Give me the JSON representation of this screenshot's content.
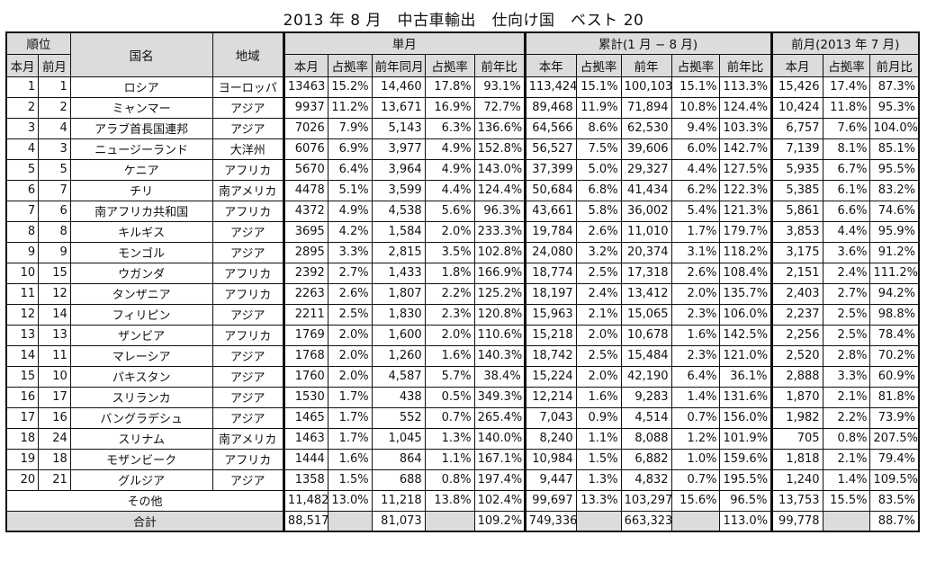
{
  "title": "2013 年 8 月　中古車輸出　仕向け国　ベスト 20",
  "headers": {
    "rank": "順位",
    "rank_this": "本月",
    "rank_prev": "前月",
    "country": "国名",
    "region": "地域",
    "single_month": "単月",
    "cumulative": "累計(1 月 − 8 月)",
    "prev_month_group": "前月(2013 年 7 月)",
    "sm_cols": [
      "本月",
      "占拠率",
      "前年同月",
      "占拠率",
      "前年比"
    ],
    "cu_cols": [
      "本年",
      "占拠率",
      "前年",
      "占拠率",
      "前年比"
    ],
    "pm_cols": [
      "本月",
      "占拠率",
      "前月比"
    ]
  },
  "rows": [
    {
      "rank": "1",
      "prev": "1",
      "country": "ロシア",
      "region": "ヨーロッパ",
      "sm": [
        "13463",
        "15.2%",
        "14,460",
        "17.8%",
        "93.1%"
      ],
      "cu": [
        "113,424",
        "15.1%",
        "100,103",
        "15.1%",
        "113.3%"
      ],
      "pm": [
        "15,426",
        "17.4%",
        "87.3%"
      ]
    },
    {
      "rank": "2",
      "prev": "2",
      "country": "ミャンマー",
      "region": "アジア",
      "sm": [
        "9937",
        "11.2%",
        "13,671",
        "16.9%",
        "72.7%"
      ],
      "cu": [
        "89,468",
        "11.9%",
        "71,894",
        "10.8%",
        "124.4%"
      ],
      "pm": [
        "10,424",
        "11.8%",
        "95.3%"
      ]
    },
    {
      "rank": "3",
      "prev": "4",
      "country": "アラブ首長国連邦",
      "region": "アジア",
      "sm": [
        "7026",
        "7.9%",
        "5,143",
        "6.3%",
        "136.6%"
      ],
      "cu": [
        "64,566",
        "8.6%",
        "62,530",
        "9.4%",
        "103.3%"
      ],
      "pm": [
        "6,757",
        "7.6%",
        "104.0%"
      ]
    },
    {
      "rank": "4",
      "prev": "3",
      "country": "ニュージーランド",
      "region": "大洋州",
      "sm": [
        "6076",
        "6.9%",
        "3,977",
        "4.9%",
        "152.8%"
      ],
      "cu": [
        "56,527",
        "7.5%",
        "39,606",
        "6.0%",
        "142.7%"
      ],
      "pm": [
        "7,139",
        "8.1%",
        "85.1%"
      ]
    },
    {
      "rank": "5",
      "prev": "5",
      "country": "ケニア",
      "region": "アフリカ",
      "sm": [
        "5670",
        "6.4%",
        "3,964",
        "4.9%",
        "143.0%"
      ],
      "cu": [
        "37,399",
        "5.0%",
        "29,327",
        "4.4%",
        "127.5%"
      ],
      "pm": [
        "5,935",
        "6.7%",
        "95.5%"
      ]
    },
    {
      "rank": "6",
      "prev": "7",
      "country": "チリ",
      "region": "南アメリカ",
      "sm": [
        "4478",
        "5.1%",
        "3,599",
        "4.4%",
        "124.4%"
      ],
      "cu": [
        "50,684",
        "6.8%",
        "41,434",
        "6.2%",
        "122.3%"
      ],
      "pm": [
        "5,385",
        "6.1%",
        "83.2%"
      ]
    },
    {
      "rank": "7",
      "prev": "6",
      "country": "南アフリカ共和国",
      "region": "アフリカ",
      "sm": [
        "4372",
        "4.9%",
        "4,538",
        "5.6%",
        "96.3%"
      ],
      "cu": [
        "43,661",
        "5.8%",
        "36,002",
        "5.4%",
        "121.3%"
      ],
      "pm": [
        "5,861",
        "6.6%",
        "74.6%"
      ]
    },
    {
      "rank": "8",
      "prev": "8",
      "country": "キルギス",
      "region": "アジア",
      "sm": [
        "3695",
        "4.2%",
        "1,584",
        "2.0%",
        "233.3%"
      ],
      "cu": [
        "19,784",
        "2.6%",
        "11,010",
        "1.7%",
        "179.7%"
      ],
      "pm": [
        "3,853",
        "4.4%",
        "95.9%"
      ]
    },
    {
      "rank": "9",
      "prev": "9",
      "country": "モンゴル",
      "region": "アジア",
      "sm": [
        "2895",
        "3.3%",
        "2,815",
        "3.5%",
        "102.8%"
      ],
      "cu": [
        "24,080",
        "3.2%",
        "20,374",
        "3.1%",
        "118.2%"
      ],
      "pm": [
        "3,175",
        "3.6%",
        "91.2%"
      ]
    },
    {
      "rank": "10",
      "prev": "15",
      "country": "ウガンダ",
      "region": "アフリカ",
      "sm": [
        "2392",
        "2.7%",
        "1,433",
        "1.8%",
        "166.9%"
      ],
      "cu": [
        "18,774",
        "2.5%",
        "17,318",
        "2.6%",
        "108.4%"
      ],
      "pm": [
        "2,151",
        "2.4%",
        "111.2%"
      ]
    },
    {
      "rank": "11",
      "prev": "12",
      "country": "タンザニア",
      "region": "アフリカ",
      "sm": [
        "2263",
        "2.6%",
        "1,807",
        "2.2%",
        "125.2%"
      ],
      "cu": [
        "18,197",
        "2.4%",
        "13,412",
        "2.0%",
        "135.7%"
      ],
      "pm": [
        "2,403",
        "2.7%",
        "94.2%"
      ]
    },
    {
      "rank": "12",
      "prev": "14",
      "country": "フィリピン",
      "region": "アジア",
      "sm": [
        "2211",
        "2.5%",
        "1,830",
        "2.3%",
        "120.8%"
      ],
      "cu": [
        "15,963",
        "2.1%",
        "15,065",
        "2.3%",
        "106.0%"
      ],
      "pm": [
        "2,237",
        "2.5%",
        "98.8%"
      ]
    },
    {
      "rank": "13",
      "prev": "13",
      "country": "ザンビア",
      "region": "アフリカ",
      "sm": [
        "1769",
        "2.0%",
        "1,600",
        "2.0%",
        "110.6%"
      ],
      "cu": [
        "15,218",
        "2.0%",
        "10,678",
        "1.6%",
        "142.5%"
      ],
      "pm": [
        "2,256",
        "2.5%",
        "78.4%"
      ]
    },
    {
      "rank": "14",
      "prev": "11",
      "country": "マレーシア",
      "region": "アジア",
      "sm": [
        "1768",
        "2.0%",
        "1,260",
        "1.6%",
        "140.3%"
      ],
      "cu": [
        "18,742",
        "2.5%",
        "15,484",
        "2.3%",
        "121.0%"
      ],
      "pm": [
        "2,520",
        "2.8%",
        "70.2%"
      ]
    },
    {
      "rank": "15",
      "prev": "10",
      "country": "パキスタン",
      "region": "アジア",
      "sm": [
        "1760",
        "2.0%",
        "4,587",
        "5.7%",
        "38.4%"
      ],
      "cu": [
        "15,224",
        "2.0%",
        "42,190",
        "6.4%",
        "36.1%"
      ],
      "pm": [
        "2,888",
        "3.3%",
        "60.9%"
      ]
    },
    {
      "rank": "16",
      "prev": "17",
      "country": "スリランカ",
      "region": "アジア",
      "sm": [
        "1530",
        "1.7%",
        "438",
        "0.5%",
        "349.3%"
      ],
      "cu": [
        "12,214",
        "1.6%",
        "9,283",
        "1.4%",
        "131.6%"
      ],
      "pm": [
        "1,870",
        "2.1%",
        "81.8%"
      ]
    },
    {
      "rank": "17",
      "prev": "16",
      "country": "バングラデシュ",
      "region": "アジア",
      "sm": [
        "1465",
        "1.7%",
        "552",
        "0.7%",
        "265.4%"
      ],
      "cu": [
        "7,043",
        "0.9%",
        "4,514",
        "0.7%",
        "156.0%"
      ],
      "pm": [
        "1,982",
        "2.2%",
        "73.9%"
      ]
    },
    {
      "rank": "18",
      "prev": "24",
      "country": "スリナム",
      "region": "南アメリカ",
      "sm": [
        "1463",
        "1.7%",
        "1,045",
        "1.3%",
        "140.0%"
      ],
      "cu": [
        "8,240",
        "1.1%",
        "8,088",
        "1.2%",
        "101.9%"
      ],
      "pm": [
        "705",
        "0.8%",
        "207.5%"
      ]
    },
    {
      "rank": "19",
      "prev": "18",
      "country": "モザンビーク",
      "region": "アフリカ",
      "sm": [
        "1444",
        "1.6%",
        "864",
        "1.1%",
        "167.1%"
      ],
      "cu": [
        "10,984",
        "1.5%",
        "6,882",
        "1.0%",
        "159.6%"
      ],
      "pm": [
        "1,818",
        "2.1%",
        "79.4%"
      ]
    },
    {
      "rank": "20",
      "prev": "21",
      "country": "グルジア",
      "region": "アジア",
      "sm": [
        "1358",
        "1.5%",
        "688",
        "0.8%",
        "197.4%"
      ],
      "cu": [
        "9,447",
        "1.3%",
        "4,832",
        "0.7%",
        "195.5%"
      ],
      "pm": [
        "1,240",
        "1.4%",
        "109.5%"
      ]
    }
  ],
  "other": {
    "label": "その他",
    "sm": [
      "11,482",
      "13.0%",
      "11,218",
      "13.8%",
      "102.4%"
    ],
    "cu": [
      "99,697",
      "13.3%",
      "103,297",
      "15.6%",
      "96.5%"
    ],
    "pm": [
      "13,753",
      "15.5%",
      "83.5%"
    ]
  },
  "total": {
    "label": "合計",
    "sm": [
      "88,517",
      "",
      "81,073",
      "",
      "109.2%"
    ],
    "cu": [
      "749,336",
      "",
      "663,323",
      "",
      "113.0%"
    ],
    "pm": [
      "99,778",
      "",
      "88.7%"
    ]
  }
}
